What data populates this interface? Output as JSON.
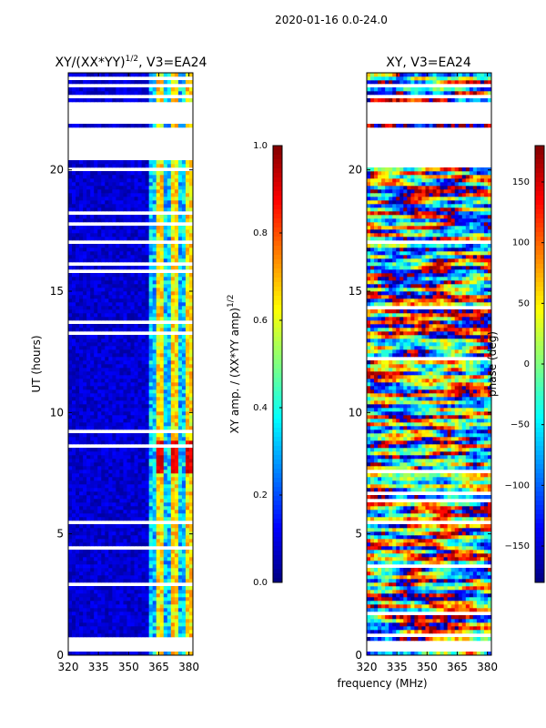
{
  "figure": {
    "suptitle": "2020-01-16 0.0-24.0",
    "xlabel_shared": "frequency (MHz)"
  },
  "chart_data": [
    {
      "type": "heatmap",
      "title": "XY/(XX*YY)^1/2, V3=EA24",
      "title_main": "XY/(XX*YY)",
      "title_exp": "1/2",
      "title_suffix": ", V3=EA24",
      "ylabel": "UT (hours)",
      "xlabel": "",
      "xlim": [
        320,
        382
      ],
      "ylim": [
        0,
        24
      ],
      "xticks": [
        320,
        335,
        350,
        365,
        380
      ],
      "yticks": [
        0,
        5,
        10,
        15,
        20
      ],
      "colorbar": {
        "label_main": "XY amp. / (XX*YY amp)",
        "label_exp": "1/2",
        "range": [
          0.0,
          1.0
        ],
        "ticks": [
          0.0,
          0.2,
          0.4,
          0.6,
          0.8,
          1.0
        ],
        "tick_labels": [
          "0.0",
          "0.2",
          "0.4",
          "0.6",
          "0.8",
          "1.0"
        ]
      },
      "gaps_hours": [
        [
          0.1,
          0.6
        ],
        [
          20.4,
          21.7
        ],
        [
          21.9,
          22.8
        ],
        [
          23.0,
          23.15
        ],
        [
          23.4,
          23.6
        ],
        [
          24.0,
          24.0
        ]
      ],
      "flagged_band_MHz": [
        361,
        382
      ],
      "high_value_region": {
        "hours": [
          7.5,
          8.8
        ],
        "value": 0.95
      }
    },
    {
      "type": "heatmap",
      "title": "XY, V3=EA24",
      "ylabel": "",
      "xlabel": "frequency (MHz)",
      "xlim": [
        320,
        382
      ],
      "ylim": [
        0,
        24
      ],
      "xticks": [
        320,
        335,
        350,
        365,
        380
      ],
      "yticks": [
        0,
        5,
        10,
        15,
        20
      ],
      "colorbar": {
        "label": "phase (deg)",
        "range": [
          -180,
          180
        ],
        "ticks": [
          150,
          100,
          50,
          0,
          -50,
          -100,
          -150
        ],
        "tick_labels": [
          "150",
          "100",
          "50",
          "0",
          "−50",
          "−100",
          "−150"
        ]
      },
      "gaps_hours": [
        [
          0.1,
          0.6
        ],
        [
          20.4,
          21.7
        ],
        [
          21.9,
          22.8
        ],
        [
          23.0,
          23.15
        ],
        [
          23.4,
          23.6
        ]
      ]
    }
  ]
}
